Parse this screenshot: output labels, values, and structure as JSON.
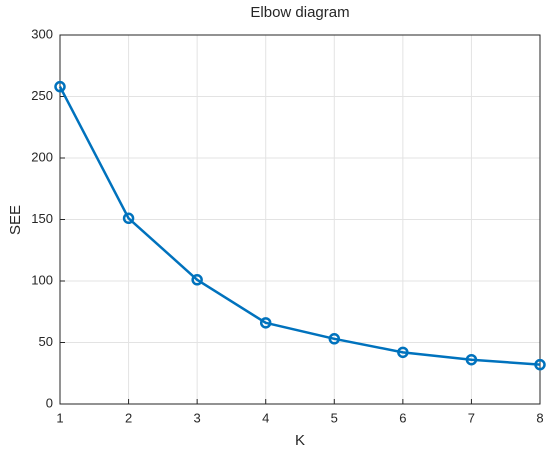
{
  "chart_data": {
    "type": "line",
    "title": "Elbow diagram",
    "x_label": "K",
    "y_label": "SEE",
    "x": [
      1,
      2,
      3,
      4,
      5,
      6,
      7,
      8
    ],
    "series": [
      {
        "name": "SEE",
        "color": "#0072bd",
        "values": [
          258,
          151,
          101,
          66,
          53,
          42,
          36,
          32
        ]
      }
    ],
    "xlim": [
      1,
      8
    ],
    "xticks": [
      1,
      2,
      3,
      4,
      5,
      6,
      7,
      8
    ],
    "ylim": [
      0,
      300
    ],
    "yticks": [
      0,
      50,
      100,
      150,
      200,
      250,
      300
    ],
    "grid": true
  }
}
